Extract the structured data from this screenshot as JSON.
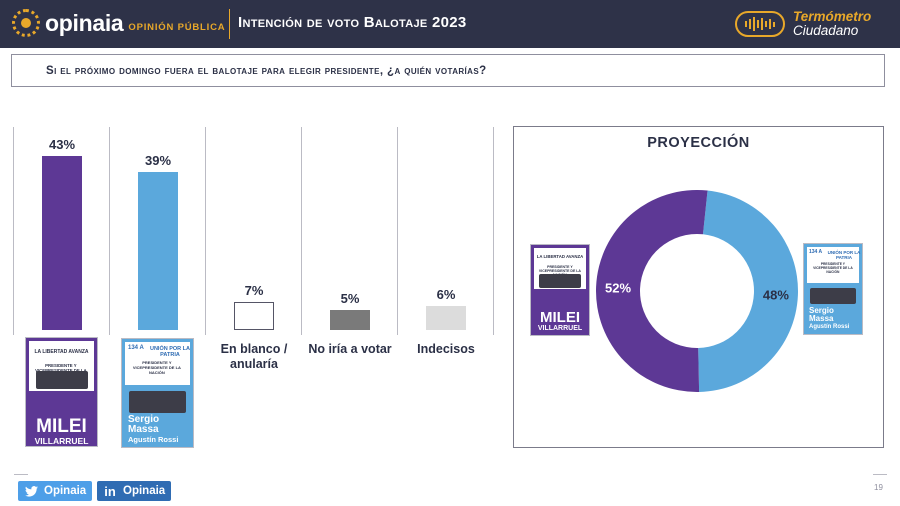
{
  "header": {
    "logo_word": "opinaia",
    "logo_sub": "OPINIÓN PÚBLICA",
    "title": "Intención de voto Balotaje 2023",
    "brand_line1": "Termómetro",
    "brand_line2": "Ciudadano"
  },
  "question": "Si el próximo domingo fuera el balotaje para elegir presidente, ¿a quién votarías?",
  "colors": {
    "header_bg": "#2e3248",
    "accent": "#e8a82a",
    "milei": "#5d3895",
    "massa": "#5ba8dc",
    "no_votaria": "#7a7a7a",
    "indecisos": "#dcdcdc"
  },
  "ballots": {
    "milei": {
      "party": "LA LIBERTAD AVANZA",
      "office": "PRESIDENTE Y VICEPRESIDENTE DE LA NACIÓN",
      "name": "MILEI",
      "running_mate": "VILLARRUEL"
    },
    "massa": {
      "party": "UNIÓN POR LA PATRIA",
      "number": "134 A",
      "office": "PRESIDENTE Y VICEPRESIDENTE DE LA NACIÓN",
      "name": "Sergio Massa",
      "running_mate": "Agustín Rossi"
    }
  },
  "chart_data": [
    {
      "type": "bar",
      "categories": [
        "Milei",
        "Massa",
        "En blanco / anularía",
        "No iría a votar",
        "Indecisos"
      ],
      "values": [
        43,
        39,
        7,
        5,
        6
      ],
      "value_labels": [
        "43%",
        "39%",
        "7%",
        "5%",
        "6%"
      ],
      "category_labels": [
        "",
        "",
        "En blanco / anularía",
        "No iría a votar",
        "Indecisos"
      ],
      "ylim": [
        0,
        43
      ],
      "grid": false
    },
    {
      "type": "pie",
      "title": "PROYECCIÓN",
      "categories": [
        "Massa",
        "Milei"
      ],
      "values": [
        48,
        52
      ],
      "value_labels": [
        "48%",
        "52%"
      ],
      "donut": true
    }
  ],
  "footer": {
    "twitter": "Opinaia",
    "linkedin": "Opinaia",
    "page": "19"
  }
}
